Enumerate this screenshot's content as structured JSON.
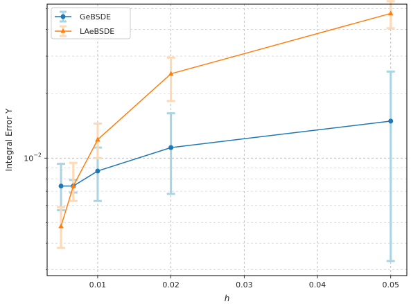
{
  "chart_data": {
    "type": "line",
    "xlabel": "h",
    "ylabel": "Integral Error Y",
    "xlim": [
      0.0031,
      0.0522
    ],
    "ylim": [
      0.00282,
      0.0525
    ],
    "yscale": "log",
    "grid": true,
    "legend_position": "top-left",
    "xticks": [
      {
        "value": 0.01,
        "label": "0.01"
      },
      {
        "value": 0.02,
        "label": "0.02"
      },
      {
        "value": 0.03,
        "label": "0.03"
      },
      {
        "value": 0.04,
        "label": "0.04"
      },
      {
        "value": 0.05,
        "label": "0.05"
      }
    ],
    "yticks_major": [
      {
        "value": 0.01,
        "base": "10",
        "exponent": "−2"
      }
    ],
    "series": [
      {
        "name": "GeBSDE",
        "color": "#1f77b4",
        "errcolor": "#a9d4e3",
        "marker": "circle",
        "x": [
          0.005,
          0.00667,
          0.01,
          0.02,
          0.05
        ],
        "y": [
          0.0074,
          0.0074,
          0.0087,
          0.0112,
          0.0149
        ],
        "yerr_low": [
          0.0057,
          0.0069,
          0.0063,
          0.0068,
          0.0033
        ],
        "yerr_high": [
          0.0094,
          0.0079,
          0.0112,
          0.0162,
          0.0254
        ]
      },
      {
        "name": "LAeBSDE",
        "color": "#ff7f0e",
        "errcolor": "#ffd8b4",
        "marker": "triangle",
        "x": [
          0.005,
          0.00667,
          0.01,
          0.02,
          0.05
        ],
        "y": [
          0.0048,
          0.0074,
          0.0122,
          0.0248,
          0.0475
        ],
        "yerr_low": [
          0.0038,
          0.0063,
          0.01,
          0.0185,
          0.0405
        ],
        "yerr_high": [
          0.0059,
          0.0095,
          0.0145,
          0.0295,
          0.0542
        ]
      }
    ]
  }
}
